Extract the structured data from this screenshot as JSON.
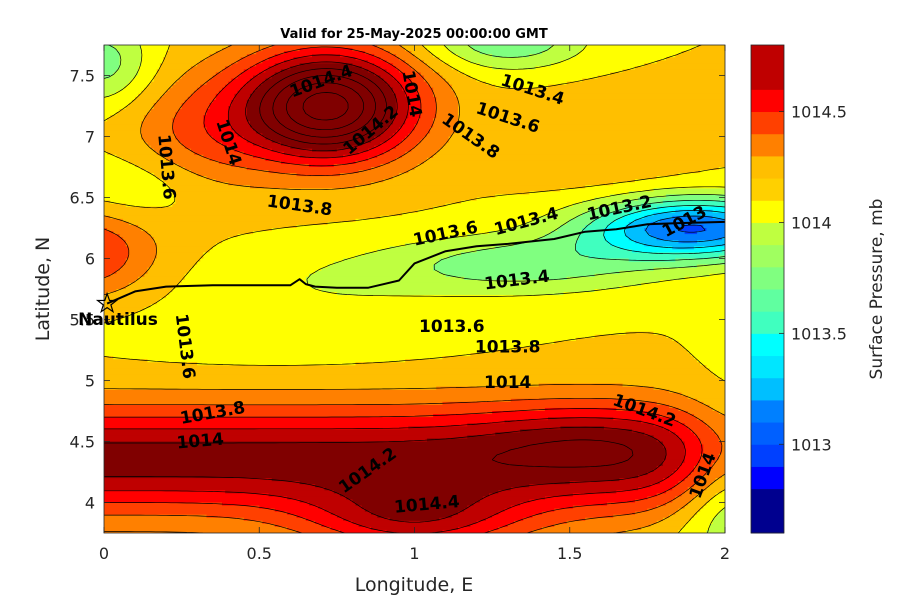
{
  "chart_data": {
    "type": "contour",
    "title": "Valid for 25-May-2025 00:00:00 GMT",
    "xlabel": "Longitude, E",
    "ylabel": "Latitude, N",
    "xlim": [
      0,
      2
    ],
    "ylim": [
      3.75,
      7.75
    ],
    "xticks": [
      {
        "value": 0,
        "label": "0"
      },
      {
        "value": 0.5,
        "label": "0.5"
      },
      {
        "value": 1,
        "label": "1"
      },
      {
        "value": 1.5,
        "label": "1.5"
      },
      {
        "value": 2,
        "label": "2"
      }
    ],
    "yticks": [
      {
        "value": 4,
        "label": "4"
      },
      {
        "value": 4.5,
        "label": "4.5"
      },
      {
        "value": 5,
        "label": "5"
      },
      {
        "value": 5.5,
        "label": "5.5"
      },
      {
        "value": 6,
        "label": "6"
      },
      {
        "value": 6.5,
        "label": "6.5"
      },
      {
        "value": 7,
        "label": "7"
      },
      {
        "value": 7.5,
        "label": "7.5"
      }
    ],
    "levels": [
      1012.6,
      1012.7,
      1012.8,
      1012.9,
      1013,
      1013.1,
      1013.2,
      1013.3,
      1013.4,
      1013.5,
      1013.6,
      1013.7,
      1013.8,
      1013.9,
      1014,
      1014.1,
      1014.2,
      1014.3,
      1014.4,
      1014.5,
      1014.6,
      1014.7,
      1014.8
    ],
    "band_colors": [
      "#00008f",
      "#0000ff",
      "#0040ff",
      "#0080ff",
      "#00bfff",
      "#00ffff",
      "#40ffbf",
      "#80ff80",
      "#bfff40",
      "#ffff00",
      "#ffbf00",
      "#ff8000",
      "#ff4000",
      "#ff0000",
      "#bf0000",
      "#800000"
    ],
    "colorbar": {
      "label": "Surface Pressure, mb",
      "range": [
        1012.6,
        1014.8
      ],
      "ticks": [
        {
          "value": 1013,
          "label": "1013"
        },
        {
          "value": 1013.5,
          "label": "1013.5"
        },
        {
          "value": 1014,
          "label": "1014"
        },
        {
          "value": 1014.5,
          "label": "1014.5"
        }
      ]
    },
    "contour_labels": [
      {
        "text": "1014.4",
        "x": 0.7,
        "y": 7.45,
        "angle": -20
      },
      {
        "text": "1014.2",
        "x": 0.86,
        "y": 7.05,
        "angle": -40
      },
      {
        "text": "1014",
        "x": 0.99,
        "y": 7.35,
        "angle": 80
      },
      {
        "text": "1014",
        "x": 0.4,
        "y": 6.95,
        "angle": 72
      },
      {
        "text": "1013.8",
        "x": 1.18,
        "y": 7.0,
        "angle": 35
      },
      {
        "text": "1013.4",
        "x": 1.38,
        "y": 7.38,
        "angle": 18
      },
      {
        "text": "1013.6",
        "x": 1.3,
        "y": 7.15,
        "angle": 18
      },
      {
        "text": "1013.6",
        "x": 0.2,
        "y": 6.75,
        "angle": 85
      },
      {
        "text": "1013.8",
        "x": 0.63,
        "y": 6.43,
        "angle": 8
      },
      {
        "text": "1013.6",
        "x": 1.1,
        "y": 6.2,
        "angle": -12
      },
      {
        "text": "1013.4",
        "x": 1.36,
        "y": 6.3,
        "angle": -15
      },
      {
        "text": "1013.2",
        "x": 1.66,
        "y": 6.41,
        "angle": -12
      },
      {
        "text": "1013",
        "x": 1.87,
        "y": 6.3,
        "angle": -28
      },
      {
        "text": "1013.4",
        "x": 1.33,
        "y": 5.82,
        "angle": -7
      },
      {
        "text": "1013.6",
        "x": 1.12,
        "y": 5.44,
        "angle": 0
      },
      {
        "text": "1013.8",
        "x": 1.3,
        "y": 5.27,
        "angle": 0
      },
      {
        "text": "1013.6",
        "x": 0.26,
        "y": 5.28,
        "angle": 83
      },
      {
        "text": "1014",
        "x": 1.3,
        "y": 4.98,
        "angle": 0
      },
      {
        "text": "1013.8",
        "x": 0.35,
        "y": 4.73,
        "angle": -10
      },
      {
        "text": "1014",
        "x": 0.31,
        "y": 4.5,
        "angle": -5
      },
      {
        "text": "1014.2",
        "x": 1.74,
        "y": 4.75,
        "angle": 20
      },
      {
        "text": "1014.2",
        "x": 0.85,
        "y": 4.26,
        "angle": -35
      },
      {
        "text": "1014.4",
        "x": 1.04,
        "y": 3.98,
        "angle": -5
      },
      {
        "text": "1014",
        "x": 1.93,
        "y": 4.22,
        "angle": -70
      }
    ],
    "marker": {
      "label": "Nautilus",
      "x": 0.01,
      "y": 5.63,
      "symbol": "pentagram"
    },
    "track": [
      [
        0.01,
        5.63
      ],
      [
        0.1,
        5.73
      ],
      [
        0.2,
        5.77
      ],
      [
        0.35,
        5.78
      ],
      [
        0.5,
        5.78
      ],
      [
        0.6,
        5.78
      ],
      [
        0.63,
        5.83
      ],
      [
        0.65,
        5.79
      ],
      [
        0.68,
        5.77
      ],
      [
        0.75,
        5.76
      ],
      [
        0.85,
        5.76
      ],
      [
        0.95,
        5.82
      ],
      [
        1.0,
        5.96
      ],
      [
        1.1,
        6.06
      ],
      [
        1.2,
        6.1
      ],
      [
        1.3,
        6.12
      ],
      [
        1.45,
        6.16
      ],
      [
        1.55,
        6.22
      ],
      [
        1.65,
        6.24
      ],
      [
        1.75,
        6.28
      ],
      [
        1.85,
        6.29
      ],
      [
        2.0,
        6.3
      ]
    ]
  }
}
